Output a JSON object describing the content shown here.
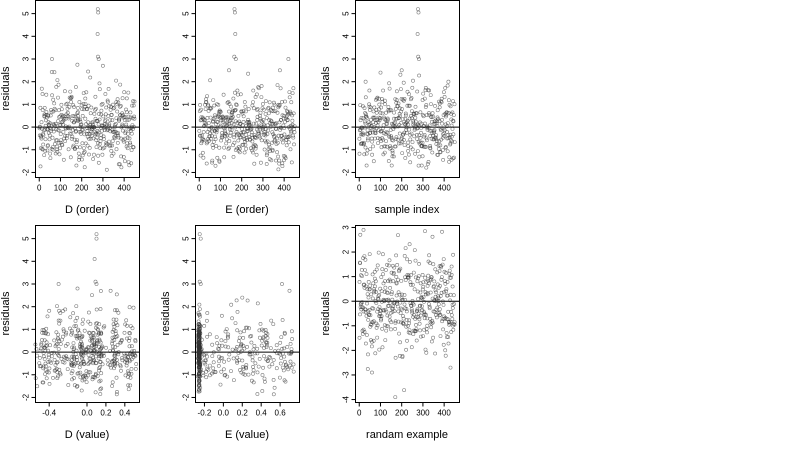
{
  "figure": {
    "background": "#ffffff",
    "point_color": "#333333"
  },
  "chart_data": [
    {
      "id": "d-order",
      "type": "scatter",
      "xlabel": "D (order)",
      "ylabel": "residuals",
      "xlim": [
        -20,
        470
      ],
      "ylim": [
        -2.2,
        5.6
      ],
      "xticks": [
        0,
        100,
        200,
        300,
        400
      ],
      "yticks": [
        -2,
        -1,
        0,
        1,
        2,
        3,
        4,
        5
      ],
      "hline": 0,
      "points": {
        "n": 450,
        "x_range": [
          1,
          450
        ],
        "dist": "skew",
        "outliers": [
          [
            276,
            5.2
          ],
          [
            278,
            5.05
          ],
          [
            275,
            4.1
          ],
          [
            277,
            3.1
          ],
          [
            280,
            3.0
          ],
          [
            180,
            2.75
          ],
          [
            230,
            2.45
          ],
          [
            60,
            3.0
          ],
          [
            300,
            2.7
          ]
        ]
      }
    },
    {
      "id": "e-order",
      "type": "scatter",
      "xlabel": "E (order)",
      "ylabel": "residuals",
      "xlim": [
        -20,
        470
      ],
      "ylim": [
        -2.2,
        5.6
      ],
      "xticks": [
        0,
        100,
        200,
        300,
        400
      ],
      "yticks": [
        -2,
        -1,
        0,
        1,
        2,
        3,
        4,
        5
      ],
      "hline": 0,
      "points": {
        "n": 450,
        "x_range": [
          1,
          450
        ],
        "dist": "skew",
        "outliers": [
          [
            166,
            5.2
          ],
          [
            168,
            5.05
          ],
          [
            170,
            4.1
          ],
          [
            165,
            3.1
          ],
          [
            172,
            3.0
          ],
          [
            140,
            2.5
          ],
          [
            380,
            2.5
          ],
          [
            420,
            3.0
          ],
          [
            230,
            2.35
          ]
        ]
      }
    },
    {
      "id": "sample-index",
      "type": "scatter",
      "xlabel": "sample index",
      "ylabel": "residuals",
      "xlim": [
        -20,
        470
      ],
      "ylim": [
        -2.2,
        5.6
      ],
      "xticks": [
        0,
        100,
        200,
        300,
        400
      ],
      "yticks": [
        -2,
        -1,
        0,
        1,
        2,
        3,
        4,
        5
      ],
      "hline": 0,
      "points": {
        "n": 450,
        "x_range": [
          1,
          450
        ],
        "dist": "skew",
        "outliers": [
          [
            277,
            5.2
          ],
          [
            279,
            5.05
          ],
          [
            275,
            4.1
          ],
          [
            278,
            3.1
          ],
          [
            281,
            3.0
          ],
          [
            200,
            2.5
          ],
          [
            100,
            2.4
          ],
          [
            30,
            2.0
          ],
          [
            420,
            2.0
          ]
        ]
      }
    },
    {
      "id": "d-value",
      "type": "scatter",
      "xlabel": "D (value)",
      "ylabel": "residuals",
      "xlim": [
        -0.55,
        0.55
      ],
      "ylim": [
        -2.2,
        5.6
      ],
      "xticks": [
        -0.4,
        0.0,
        0.2,
        0.4
      ],
      "xtick_labels": [
        "-0.4",
        "0.0",
        "0.2",
        "0.4"
      ],
      "yticks": [
        -2,
        -1,
        0,
        1,
        2,
        3,
        4,
        5
      ],
      "hline": 0,
      "points": {
        "n": 450,
        "x_range": [
          -0.5,
          0.5
        ],
        "dist": "skew-banded",
        "outliers": [
          [
            0.1,
            5.2
          ],
          [
            0.1,
            5.0
          ],
          [
            0.08,
            4.1
          ],
          [
            0.09,
            3.1
          ],
          [
            0.1,
            3.0
          ],
          [
            -0.3,
            3.0
          ],
          [
            -0.1,
            2.8
          ],
          [
            0.25,
            2.7
          ]
        ]
      }
    },
    {
      "id": "e-value",
      "type": "scatter",
      "xlabel": "E (value)",
      "ylabel": "residuals",
      "xlim": [
        -0.3,
        0.8
      ],
      "ylim": [
        -2.2,
        5.6
      ],
      "xticks": [
        -0.2,
        0.0,
        0.2,
        0.4,
        0.6
      ],
      "xtick_labels": [
        "-0.2",
        "0.0",
        "0.2",
        "0.4",
        "0.6"
      ],
      "yticks": [
        -2,
        -1,
        0,
        1,
        2,
        3,
        4,
        5
      ],
      "hline": 0,
      "points": {
        "n": 450,
        "x_range": [
          -0.27,
          0.75
        ],
        "dist": "skew-clustered",
        "outliers": [
          [
            -0.25,
            5.2
          ],
          [
            -0.24,
            5.0
          ],
          [
            -0.25,
            3.1
          ],
          [
            -0.24,
            3.0
          ],
          [
            0.62,
            3.0
          ],
          [
            0.2,
            2.4
          ],
          [
            0.7,
            2.7
          ]
        ]
      }
    },
    {
      "id": "random-example",
      "type": "scatter",
      "xlabel": "randam example",
      "ylabel": "residuals",
      "xlim": [
        -20,
        470
      ],
      "ylim": [
        -4.1,
        3.1
      ],
      "xticks": [
        0,
        100,
        200,
        300,
        400
      ],
      "yticks": [
        -4,
        -3,
        -2,
        -1,
        0,
        1,
        2,
        3
      ],
      "hline": 0,
      "points": {
        "n": 450,
        "x_range": [
          1,
          450
        ],
        "dist": "normal",
        "outliers": [
          [
            170,
            -3.9
          ],
          [
            60,
            -2.9
          ],
          [
            430,
            -2.7
          ],
          [
            20,
            2.9
          ],
          [
            310,
            2.85
          ],
          [
            5,
            2.7
          ]
        ]
      }
    }
  ]
}
